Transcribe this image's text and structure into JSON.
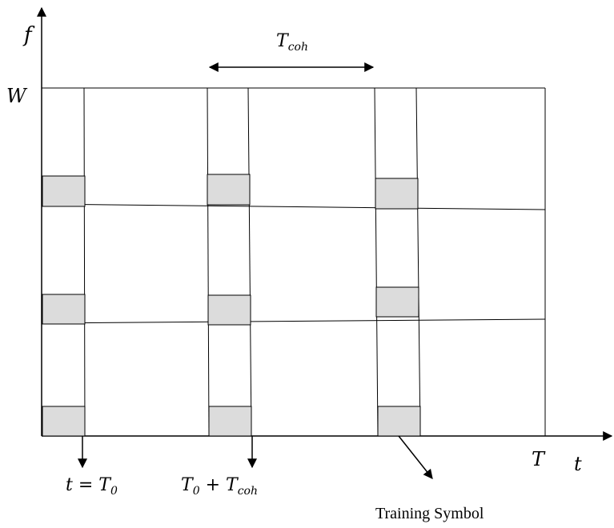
{
  "axes": {
    "y_label": "f",
    "x_label": "t",
    "y_max_label": "W",
    "x_max_label": "T"
  },
  "coherence_label": "T",
  "coherence_sub": "coh",
  "markers": {
    "t0_label_prefix": "t = T",
    "t0_label_sub": "0",
    "t1_label_a": "T",
    "t1_label_a_sub": "0",
    "t1_label_b": " + T",
    "t1_label_b_sub": "coh"
  },
  "legend": {
    "training_symbol": "Training Symbol"
  },
  "colors": {
    "line": "#000000",
    "training_fill": "#dcdcdc"
  }
}
